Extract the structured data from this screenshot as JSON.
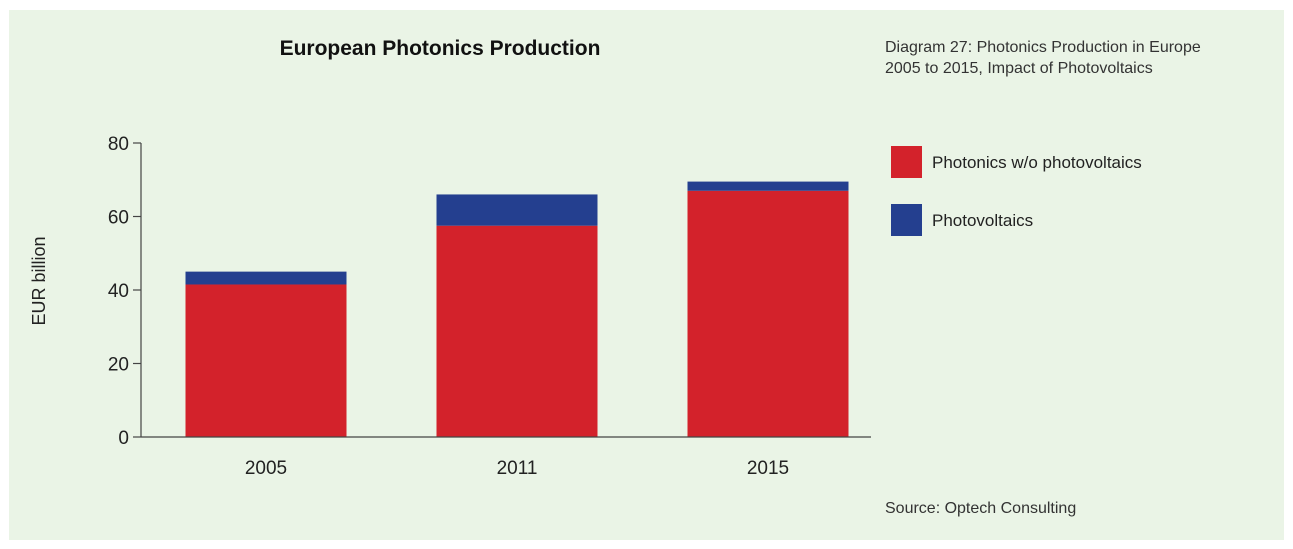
{
  "caption": {
    "line1": "Diagram 27: Photonics Production in Europe",
    "line2": "2005 to 2015, Impact of Photovoltaics"
  },
  "source": "Source: Optech Consulting",
  "chart_data": {
    "type": "bar",
    "stacked": true,
    "title": "European Photonics Production",
    "xlabel": "",
    "ylabel": "EUR billion",
    "ylim": [
      0,
      80
    ],
    "yticks": [
      0,
      20,
      40,
      60,
      80
    ],
    "categories": [
      "2005",
      "2011",
      "2015"
    ],
    "series": [
      {
        "name": "Photonics w/o photovoltaics",
        "values": [
          41.5,
          57.5,
          67
        ],
        "color": "#d3222b"
      },
      {
        "name": "Photovoltaics",
        "values": [
          3.5,
          8.5,
          2.5
        ],
        "color": "#243f8f"
      }
    ],
    "grid": false,
    "legend": "right"
  }
}
